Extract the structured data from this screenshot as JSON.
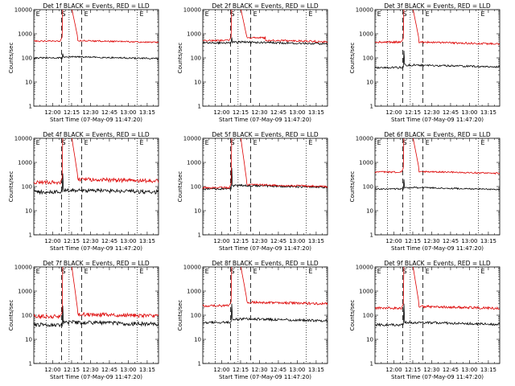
{
  "chart_data": {
    "type": "line",
    "layout": "3x3 grid",
    "y_scale": "log",
    "ylim": [
      1,
      10000
    ],
    "ylabel": "Counts/sec",
    "xlabel": "Start Time (07-May-09 11:47:20)",
    "x_tick_labels": [
      "12:00",
      "12:15",
      "12:30",
      "12:45",
      "13:00",
      "13:15"
    ],
    "y_tick_labels": [
      "1",
      "10",
      "100",
      "1000",
      "10000"
    ],
    "series_colors": {
      "events": "#000000",
      "lld": "#dd0000"
    },
    "panels": [
      {
        "title": "Det 1f BLACK = Events, RED = LLD",
        "markers": [
          "E",
          "S",
          "E",
          "E"
        ],
        "events_base": 100,
        "lld_base": 500,
        "events_after": 110,
        "lld_after": 520,
        "noise": 0.03,
        "jump_event": 150,
        "red_mid": null
      },
      {
        "title": "Det 2f BLACK = Events, RED = LLD",
        "markers": [
          "E",
          "S",
          "E",
          "E"
        ],
        "events_base": 420,
        "lld_base": 520,
        "events_after": 450,
        "lld_after": 560,
        "noise": 0.04,
        "jump_event": 700,
        "red_mid": 700
      },
      {
        "title": "Det 3f BLACK = Events, RED = LLD",
        "markers": [
          "E",
          "S",
          "E",
          "E"
        ],
        "events_base": 40,
        "lld_base": 450,
        "events_after": 50,
        "lld_after": 450,
        "noise": 0.04,
        "jump_event": 200,
        "red_mid": null
      },
      {
        "title": "Det 4f BLACK = Events, RED = LLD",
        "markers": [
          "E",
          "S",
          "E",
          "E"
        ],
        "events_base": 60,
        "lld_base": 150,
        "events_after": 70,
        "lld_after": 200,
        "noise": 0.08,
        "jump_event": 350,
        "red_mid": null
      },
      {
        "title": "Det 5f BLACK = Events, RED = LLD",
        "markers": [
          "E",
          "S",
          "E",
          "E"
        ],
        "events_base": 80,
        "lld_base": 90,
        "events_after": 110,
        "lld_after": 120,
        "noise": 0.04,
        "jump_event": 600,
        "red_mid": null
      },
      {
        "title": "Det 6f BLACK = Events, RED = LLD",
        "markers": [
          "E",
          "S",
          "E",
          "E"
        ],
        "events_base": 80,
        "lld_base": 400,
        "events_after": 90,
        "lld_after": 420,
        "noise": 0.03,
        "jump_event": 200,
        "red_mid": null
      },
      {
        "title": "Det 7f BLACK = Events, RED = LLD",
        "markers": [
          "E",
          "S",
          "E",
          "E"
        ],
        "events_base": 40,
        "lld_base": 90,
        "events_after": 50,
        "lld_after": 110,
        "noise": 0.08,
        "jump_event": 250,
        "red_mid": null
      },
      {
        "title": "Det 8f BLACK = Events, RED = LLD",
        "markers": [
          "E",
          "S",
          "E",
          "E"
        ],
        "events_base": 50,
        "lld_base": 250,
        "events_after": 70,
        "lld_after": 350,
        "noise": 0.05,
        "jump_event": 300,
        "red_mid": null
      },
      {
        "title": "Det 9f BLACK = Events, RED = LLD",
        "markers": [
          "E",
          "S",
          "E",
          "E"
        ],
        "events_base": 40,
        "lld_base": 200,
        "events_after": 50,
        "lld_after": 230,
        "noise": 0.05,
        "jump_event": 300,
        "red_mid": null
      }
    ]
  }
}
